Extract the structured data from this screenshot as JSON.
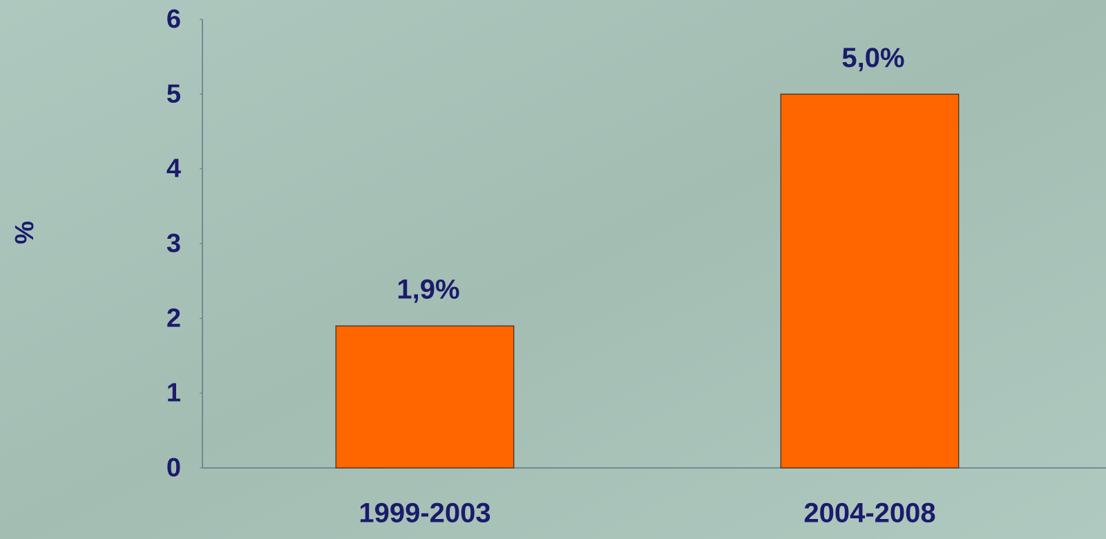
{
  "chart_data": {
    "type": "bar",
    "y_label": "%",
    "categories": [
      "1999-2003",
      "2004-2008"
    ],
    "values": [
      1.9,
      5.0
    ],
    "value_labels": [
      "1,9%",
      "5,0%"
    ],
    "color": "#ff6600",
    "ylim": [
      0,
      6
    ],
    "yticks": [
      0,
      1,
      2,
      3,
      4,
      5,
      6
    ],
    "grid": false
  }
}
